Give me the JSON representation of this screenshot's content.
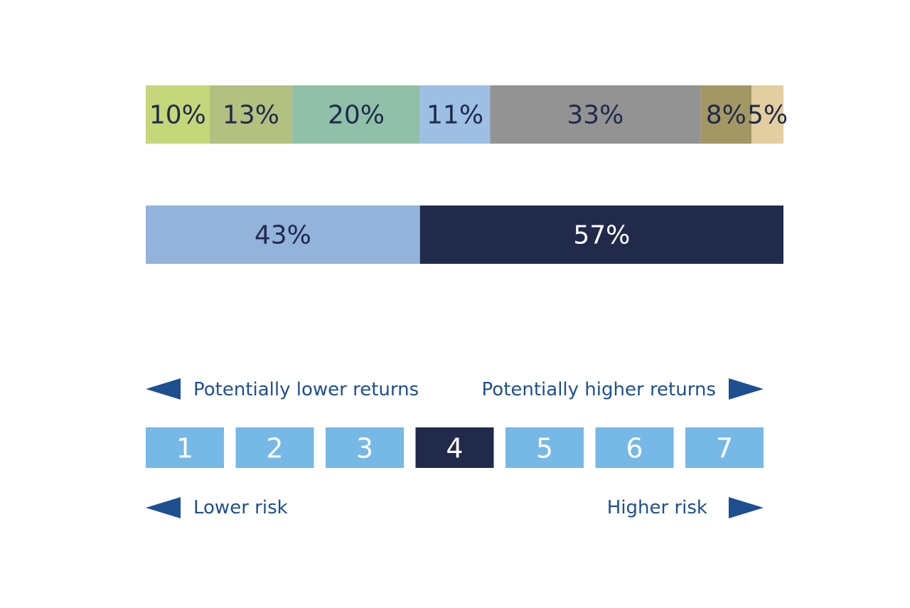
{
  "chart_data": [
    {
      "type": "bar",
      "orientation": "horizontal-stacked-100",
      "segments": [
        {
          "value": 10,
          "label": "10%",
          "color": "#c5d77a"
        },
        {
          "value": 13,
          "label": "13%",
          "color": "#b3c07f"
        },
        {
          "value": 20,
          "label": "20%",
          "color": "#90c0a8"
        },
        {
          "value": 11,
          "label": "11%",
          "color": "#9dbfe3"
        },
        {
          "value": 33,
          "label": "33%",
          "color": "#939393"
        },
        {
          "value": 8,
          "label": "8%",
          "color": "#a39864"
        },
        {
          "value": 5,
          "label": "5%",
          "color": "#e3cea0"
        }
      ],
      "label_color": "#1f2a4d"
    },
    {
      "type": "bar",
      "orientation": "horizontal-stacked-100",
      "segments": [
        {
          "value": 43,
          "label": "43%",
          "color": "#93b3db",
          "label_color": "#1f2a4d"
        },
        {
          "value": 57,
          "label": "57%",
          "color": "#212a4a",
          "label_color": "#ffffff"
        }
      ]
    }
  ],
  "risk_scale": {
    "returns_low": "Potentially lower returns",
    "returns_high": "Potentially higher returns",
    "risk_low": "Lower risk",
    "risk_high": "Higher risk",
    "levels": [
      "1",
      "2",
      "3",
      "4",
      "5",
      "6",
      "7"
    ],
    "selected": "4",
    "color_default": "#76b8e6",
    "color_selected": "#212a4a",
    "arrow_color": "#1d4f91"
  }
}
